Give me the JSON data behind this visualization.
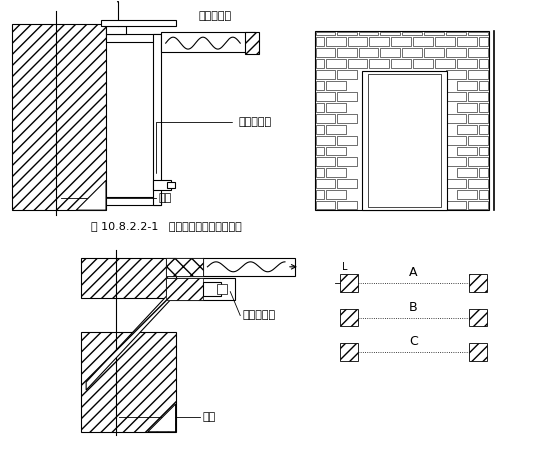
{
  "caption": "图 10.8.2.2-1   钢木质防火门结构安装图",
  "label_dacinglatiepi": "打钉拉铁皮",
  "label_gangfanghuomenkuang": "钢防火门框",
  "label_qiangti1": "墙体",
  "label_fanghuamudoorkuang": "防火木门框",
  "label_qiangti2": "墙体",
  "label_A": "A",
  "label_B": "B",
  "label_C": "C",
  "bg_color": "#ffffff",
  "line_color": "#000000"
}
